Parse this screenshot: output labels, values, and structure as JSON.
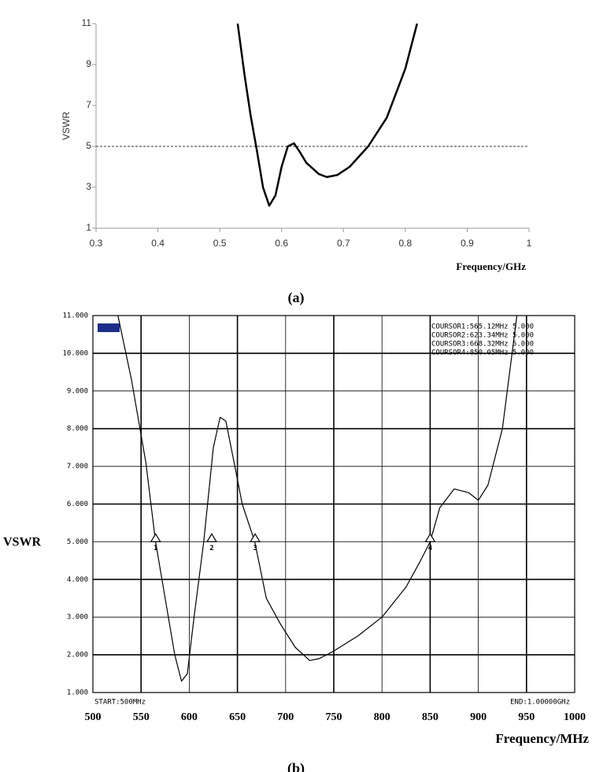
{
  "chart_data": [
    {
      "type": "line",
      "caption": "(a)",
      "y_label": "VSWR",
      "x_label": "Frequency/GHz",
      "xlim": [
        0.3,
        1
      ],
      "xticks": [
        0.3,
        0.4,
        0.5,
        0.6,
        0.7,
        0.8,
        0.9,
        1
      ],
      "ylim": [
        1,
        11
      ],
      "yticks": [
        1,
        3,
        5,
        7,
        9,
        11
      ],
      "hline": 5,
      "grid": false,
      "color": "#000000",
      "x": [
        0.529,
        0.54,
        0.55,
        0.56,
        0.57,
        0.58,
        0.59,
        0.6,
        0.61,
        0.62,
        0.63,
        0.64,
        0.66,
        0.673,
        0.69,
        0.71,
        0.74,
        0.77,
        0.8,
        0.819
      ],
      "values": [
        11,
        8.5,
        6.5,
        4.8,
        3.0,
        2.1,
        2.6,
        4.0,
        5.0,
        5.15,
        4.7,
        4.2,
        3.65,
        3.5,
        3.6,
        4.0,
        5.0,
        6.4,
        8.8,
        11
      ]
    },
    {
      "type": "line",
      "caption": "(b)",
      "y_label": "VSWR",
      "x_label": "Frequency/MHz",
      "xlim": [
        500,
        1000
      ],
      "xticks": [
        500,
        550,
        600,
        650,
        700,
        750,
        800,
        850,
        900,
        950,
        1000
      ],
      "ylim": [
        1,
        11
      ],
      "yticks": [
        {
          "value": 1,
          "label": "1.000"
        },
        {
          "value": 2,
          "label": "2.000"
        },
        {
          "value": 3,
          "label": "3.000"
        },
        {
          "value": 4,
          "label": "4.000"
        },
        {
          "value": 5,
          "label": "5.000"
        },
        {
          "value": 6,
          "label": "6.000"
        },
        {
          "value": 7,
          "label": "7.000"
        },
        {
          "value": 8,
          "label": "8.000"
        },
        {
          "value": 9,
          "label": "9.000"
        },
        {
          "value": 10,
          "label": "10.000"
        },
        {
          "value": 11,
          "label": "11.000"
        }
      ],
      "grid": true,
      "color": "#000000",
      "start_label": "START:500MHz",
      "end_label": "END:1.00000GHz",
      "annotations": [
        "COURSOR1:565.12MHz 5.000",
        "COURSOR2:623.34MHz 5.000",
        "COURSOR3:668.32MHz 5.000",
        "COURSOR4:850.05MHz 5.000"
      ],
      "markers": [
        {
          "label": "1",
          "x": 565.12,
          "y": 5
        },
        {
          "label": "2",
          "x": 623.34,
          "y": 5
        },
        {
          "label": "3",
          "x": 668.32,
          "y": 5
        },
        {
          "label": "4",
          "x": 850.05,
          "y": 5
        }
      ],
      "x": [
        526,
        540,
        555,
        565,
        575,
        585,
        592,
        598,
        605,
        615,
        625,
        632,
        638,
        645,
        655,
        668,
        680,
        695,
        710,
        725,
        735,
        750,
        775,
        800,
        825,
        840,
        850,
        860,
        875,
        890,
        900,
        910,
        925,
        940
      ],
      "values": [
        11,
        9.3,
        7.1,
        5.0,
        3.5,
        2.0,
        1.3,
        1.5,
        3.0,
        5.0,
        7.5,
        8.3,
        8.2,
        7.3,
        6.0,
        5.0,
        3.5,
        2.8,
        2.2,
        1.85,
        1.9,
        2.1,
        2.5,
        3.0,
        3.8,
        4.5,
        5.0,
        5.9,
        6.4,
        6.3,
        6.1,
        6.5,
        8.0,
        11
      ]
    }
  ]
}
